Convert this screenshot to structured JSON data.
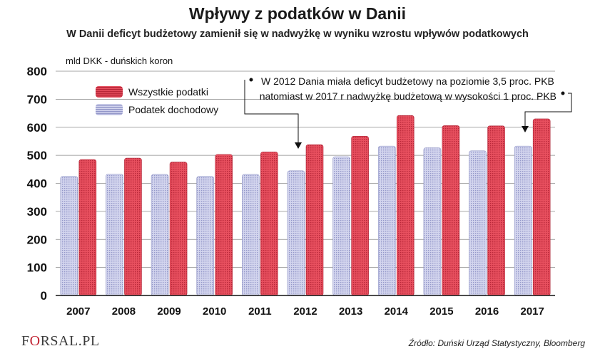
{
  "title": "Wpływy z podatków w Danii",
  "subtitle": "W Danii deficyt budżetowy zamienił się w nadwyżkę w wyniku wzrostu wpływów podatkowych",
  "unit_label": "mld DKK - duńskich koron",
  "annotation": {
    "line1": "W 2012 Dania miała deficyt budżetowy na poziomie 3,5 proc. PKB",
    "line2": "natomiast w 2017 r nadwyżkę budżetową w wysokości 1 proc. PKB"
  },
  "source": "Źródło: Duński Urząd Statystyczny, Bloomberg",
  "logo": {
    "prefix": "F",
    "ring": "O",
    "suffix": "RSAL.PL"
  },
  "colors": {
    "red": "#e23d4e",
    "red_dark": "#b0283a",
    "blue": "#c5c8e6",
    "blue_dark": "#9196c6",
    "axis": "#111111"
  },
  "chart_data": {
    "type": "bar",
    "categories": [
      "2007",
      "2008",
      "2009",
      "2010",
      "2011",
      "2012",
      "2013",
      "2014",
      "2015",
      "2016",
      "2017"
    ],
    "series": [
      {
        "name": "Podatek dochodowy",
        "color": "#c5c8e6",
        "values": [
          425,
          433,
          432,
          425,
          432,
          445,
          495,
          533,
          527,
          516,
          533
        ]
      },
      {
        "name": "Wszystkie podatki",
        "color": "#e23d4e",
        "values": [
          485,
          490,
          476,
          503,
          512,
          538,
          568,
          642,
          606,
          605,
          630
        ]
      }
    ],
    "ylim": [
      0,
      800
    ],
    "yticks": [
      "0",
      "100",
      "200",
      "300",
      "400",
      "500",
      "600",
      "700",
      "800"
    ],
    "legend_order": [
      "Wszystkie podatki",
      "Podatek dochodowy"
    ],
    "grid": true,
    "legend_position": "top-left"
  }
}
